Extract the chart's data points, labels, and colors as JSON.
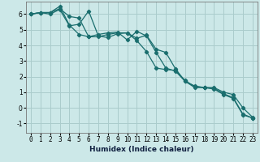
{
  "xlabel": "Humidex (Indice chaleur)",
  "ylabel": "",
  "background_color": "#cce8e8",
  "grid_color": "#aacccc",
  "line_color": "#1a6e6e",
  "xlim": [
    -0.5,
    23.5
  ],
  "ylim": [
    -1.6,
    6.8
  ],
  "yticks": [
    -1,
    0,
    1,
    2,
    3,
    4,
    5,
    6
  ],
  "xticks": [
    0,
    1,
    2,
    3,
    4,
    5,
    6,
    7,
    8,
    9,
    10,
    11,
    12,
    13,
    14,
    15,
    16,
    17,
    18,
    19,
    20,
    21,
    22,
    23
  ],
  "line1_x": [
    0,
    1,
    2,
    3,
    4,
    5,
    6,
    7,
    8,
    9,
    10,
    11,
    12,
    13,
    14,
    15,
    16,
    17,
    18,
    19,
    20,
    21,
    22,
    23
  ],
  "line1_y": [
    6.0,
    6.1,
    6.1,
    6.35,
    5.85,
    5.75,
    4.55,
    4.55,
    4.7,
    4.8,
    4.8,
    4.3,
    3.6,
    2.55,
    2.45,
    2.4,
    1.75,
    1.35,
    1.3,
    1.25,
    0.9,
    0.65,
    -0.4,
    -0.65
  ],
  "line2_x": [
    0,
    1,
    2,
    3,
    4,
    5,
    6,
    7,
    8,
    9,
    10,
    11,
    12,
    13,
    14,
    15,
    16,
    17,
    18,
    19,
    20,
    21,
    22,
    23
  ],
  "line2_y": [
    6.0,
    6.1,
    6.1,
    6.5,
    5.3,
    4.7,
    4.55,
    4.7,
    4.8,
    4.85,
    4.35,
    4.9,
    4.6,
    3.55,
    2.55,
    2.35,
    1.7,
    1.3,
    1.3,
    1.2,
    0.85,
    0.6,
    -0.45,
    -0.65
  ],
  "line3_x": [
    0,
    1,
    2,
    3,
    4,
    5,
    6,
    7,
    8,
    9,
    10,
    11,
    12,
    13,
    14,
    15,
    16,
    17,
    18,
    19,
    20,
    21,
    22,
    23
  ],
  "line3_y": [
    6.0,
    6.1,
    6.0,
    6.3,
    5.25,
    5.35,
    6.2,
    4.6,
    4.5,
    4.75,
    4.8,
    4.45,
    4.65,
    3.75,
    3.55,
    2.5,
    1.7,
    1.4,
    1.3,
    1.3,
    1.0,
    0.85,
    0.0,
    -0.6
  ],
  "marker": "D",
  "markersize": 2.2,
  "linewidth": 0.9,
  "tick_fontsize": 5.5,
  "xlabel_fontsize": 6.5,
  "xlabel_color": "#102040"
}
